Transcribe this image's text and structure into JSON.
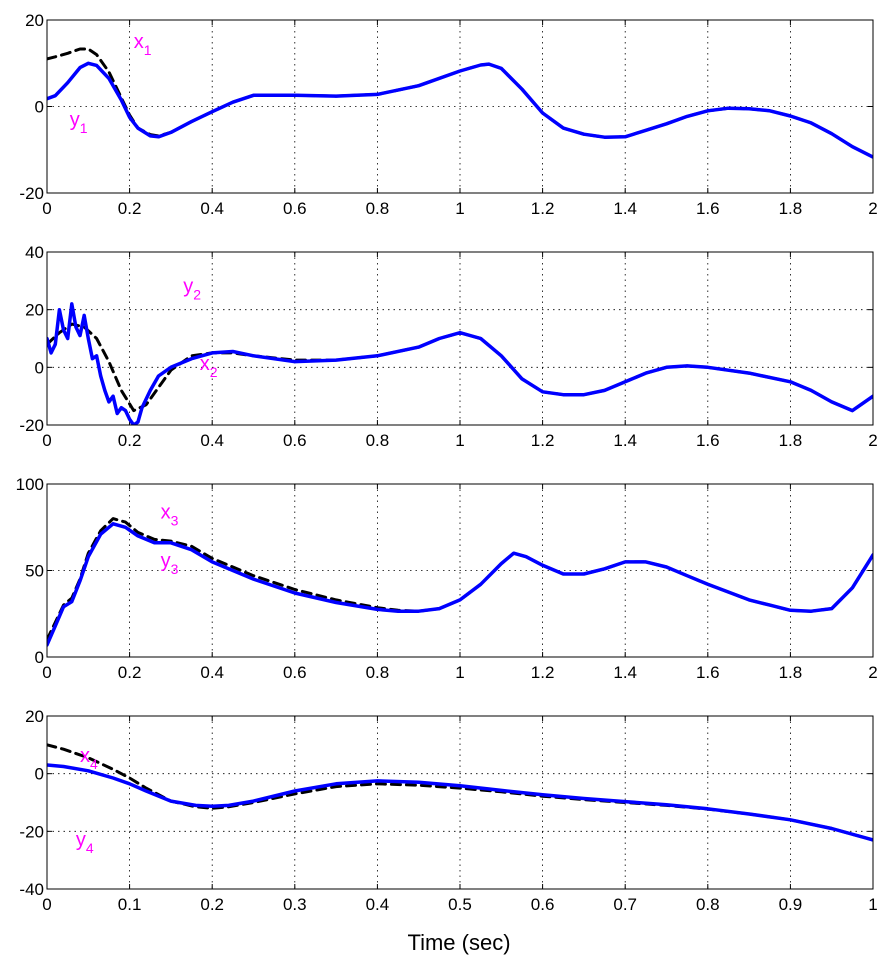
{
  "colors": {
    "x_series": "#000000",
    "y_series": "#0000ff",
    "annotation": "#ff00ff",
    "grid": "#000000"
  },
  "chart_data": [
    {
      "type": "line",
      "xlim": [
        0,
        2
      ],
      "ylim": [
        -20,
        20
      ],
      "xticks": [
        "0",
        "0.2",
        "0.4",
        "0.6",
        "0.8",
        "1",
        "1.2",
        "1.4",
        "1.6",
        "1.8",
        "2"
      ],
      "yticks": [
        "-20",
        "0",
        "20"
      ],
      "grid": true,
      "annotations": [
        {
          "label": "x",
          "sub": "1",
          "x": 0.21,
          "y": 13.5
        },
        {
          "label": "y",
          "sub": "1",
          "x": 0.055,
          "y": -4.5
        }
      ],
      "series": [
        {
          "name": "x1",
          "style": "dashed",
          "color": "#000000",
          "x": [
            0,
            0.02,
            0.05,
            0.08,
            0.1,
            0.12,
            0.15,
            0.18,
            0.2,
            0.22,
            0.25,
            0.27,
            0.3,
            0.35,
            0.4,
            0.45,
            0.5,
            0.6,
            0.7,
            0.8,
            0.9,
            1.0,
            1.05,
            1.07,
            1.1,
            1.15,
            1.2,
            1.25,
            1.3,
            1.35,
            1.4,
            1.45,
            1.5,
            1.55,
            1.6,
            1.65,
            1.7,
            1.75,
            1.8,
            1.85,
            1.9,
            1.95,
            2.0
          ],
          "y": [
            11,
            11.5,
            12.3,
            13.3,
            13.3,
            12,
            8,
            2,
            -2,
            -5,
            -6.5,
            -6.8,
            -6,
            -3.5,
            -1.2,
            1,
            2.6,
            2.6,
            2.4,
            2.8,
            4.8,
            8.2,
            9.6,
            9.8,
            8.8,
            4,
            -1.5,
            -5,
            -6.4,
            -7.1,
            -7,
            -5.5,
            -4,
            -2.3,
            -1,
            -0.4,
            -0.5,
            -1,
            -2.2,
            -3.8,
            -6.3,
            -9.3,
            -11.7
          ]
        },
        {
          "name": "y1",
          "style": "solid",
          "color": "#0000ff",
          "x": [
            0,
            0.02,
            0.05,
            0.08,
            0.1,
            0.12,
            0.15,
            0.18,
            0.2,
            0.22,
            0.25,
            0.27,
            0.3,
            0.35,
            0.4,
            0.45,
            0.5,
            0.6,
            0.7,
            0.8,
            0.9,
            1.0,
            1.05,
            1.07,
            1.1,
            1.15,
            1.2,
            1.25,
            1.3,
            1.35,
            1.4,
            1.45,
            1.5,
            1.55,
            1.6,
            1.65,
            1.7,
            1.75,
            1.8,
            1.85,
            1.9,
            1.95,
            2.0
          ],
          "y": [
            1.8,
            2.5,
            5.5,
            9,
            10,
            9.5,
            6.5,
            1.5,
            -2.5,
            -5,
            -6.8,
            -7,
            -6,
            -3.5,
            -1.2,
            1,
            2.6,
            2.6,
            2.4,
            2.8,
            4.8,
            8.2,
            9.6,
            9.8,
            8.8,
            4,
            -1.5,
            -5,
            -6.4,
            -7.1,
            -7,
            -5.5,
            -4,
            -2.3,
            -1,
            -0.4,
            -0.5,
            -1,
            -2.2,
            -3.8,
            -6.3,
            -9.3,
            -11.7
          ]
        }
      ]
    },
    {
      "type": "line",
      "xlim": [
        0,
        2
      ],
      "ylim": [
        -20,
        40
      ],
      "xticks": [
        "0",
        "0.2",
        "0.4",
        "0.6",
        "0.8",
        "1",
        "1.2",
        "1.4",
        "1.6",
        "1.8",
        "2"
      ],
      "yticks": [
        "-20",
        "0",
        "20",
        "40"
      ],
      "grid": true,
      "annotations": [
        {
          "label": "y",
          "sub": "2",
          "x": 0.33,
          "y": 26
        },
        {
          "label": "x",
          "sub": "2",
          "x": 0.37,
          "y": -1
        }
      ],
      "series": [
        {
          "name": "x2",
          "style": "dashed",
          "color": "#000000",
          "x": [
            0,
            0.03,
            0.06,
            0.09,
            0.12,
            0.15,
            0.18,
            0.21,
            0.24,
            0.27,
            0.3,
            0.35,
            0.4,
            0.45,
            0.5,
            0.6,
            0.7,
            0.8,
            0.9,
            0.95,
            1.0,
            1.05,
            1.1,
            1.15,
            1.2,
            1.25,
            1.3,
            1.35,
            1.4,
            1.45,
            1.5,
            1.55,
            1.6,
            1.7,
            1.8,
            1.85,
            1.9,
            1.95,
            2.0
          ],
          "y": [
            8,
            12,
            15,
            14,
            10,
            2,
            -8,
            -15,
            -13,
            -7,
            -1,
            4,
            5,
            5,
            4,
            2.5,
            2.5,
            4,
            7,
            10,
            12,
            10,
            4,
            -4,
            -8.5,
            -9.5,
            -9.5,
            -8,
            -5,
            -2,
            0,
            0.5,
            0,
            -2,
            -5,
            -8,
            -12,
            -15,
            -10
          ]
        },
        {
          "name": "y2",
          "style": "solid",
          "color": "#0000ff",
          "x": [
            0,
            0.01,
            0.02,
            0.03,
            0.04,
            0.05,
            0.06,
            0.07,
            0.08,
            0.09,
            0.1,
            0.11,
            0.12,
            0.13,
            0.14,
            0.15,
            0.16,
            0.17,
            0.18,
            0.19,
            0.2,
            0.21,
            0.22,
            0.23,
            0.25,
            0.27,
            0.3,
            0.35,
            0.4,
            0.45,
            0.5,
            0.6,
            0.7,
            0.8,
            0.9,
            0.95,
            1.0,
            1.05,
            1.1,
            1.15,
            1.2,
            1.25,
            1.3,
            1.35,
            1.4,
            1.45,
            1.5,
            1.55,
            1.6,
            1.7,
            1.8,
            1.85,
            1.9,
            1.95,
            2.0
          ],
          "y": [
            10,
            5,
            8,
            20,
            13,
            10,
            22,
            14,
            11,
            18,
            10,
            3,
            4,
            -3,
            -8,
            -12,
            -10,
            -16,
            -14,
            -15,
            -18,
            -20,
            -19,
            -14,
            -8,
            -3,
            0,
            3,
            5,
            5.5,
            4,
            2,
            2.5,
            4,
            7,
            10,
            12,
            10,
            4,
            -4,
            -8.5,
            -9.5,
            -9.5,
            -8,
            -5,
            -2,
            0,
            0.5,
            0,
            -2,
            -5,
            -8,
            -12,
            -15,
            -10
          ]
        }
      ]
    },
    {
      "type": "line",
      "xlim": [
        0,
        2
      ],
      "ylim": [
        0,
        100
      ],
      "xticks": [
        "0",
        "0.2",
        "0.4",
        "0.6",
        "0.8",
        "1",
        "1.2",
        "1.4",
        "1.6",
        "1.8",
        "2"
      ],
      "yticks": [
        "0",
        "50",
        "100"
      ],
      "grid": true,
      "annotations": [
        {
          "label": "x",
          "sub": "3",
          "x": 0.275,
          "y": 80
        },
        {
          "label": "y",
          "sub": "3",
          "x": 0.275,
          "y": 52
        }
      ],
      "series": [
        {
          "name": "x3",
          "style": "dashed",
          "color": "#000000",
          "x": [
            0,
            0.02,
            0.04,
            0.06,
            0.08,
            0.1,
            0.13,
            0.16,
            0.19,
            0.22,
            0.26,
            0.3,
            0.35,
            0.4,
            0.5,
            0.6,
            0.7,
            0.8,
            0.85,
            0.9,
            0.95,
            1.0,
            1.05,
            1.1,
            1.13,
            1.16,
            1.2,
            1.25,
            1.3,
            1.35,
            1.4,
            1.45,
            1.5,
            1.55,
            1.6,
            1.7,
            1.75,
            1.8,
            1.85,
            1.9,
            1.95,
            2.0
          ],
          "y": [
            10,
            20,
            30,
            34,
            45,
            60,
            73,
            80,
            78,
            72,
            68,
            67,
            64,
            57,
            47,
            39,
            33,
            28.5,
            27,
            26.5,
            28,
            33,
            42,
            54,
            60,
            58,
            53,
            48,
            48,
            51,
            55,
            55,
            52,
            47,
            42,
            33,
            30,
            27,
            26.5,
            28,
            40,
            59
          ]
        },
        {
          "name": "y3",
          "style": "solid",
          "color": "#0000ff",
          "x": [
            0,
            0.02,
            0.04,
            0.06,
            0.08,
            0.1,
            0.13,
            0.16,
            0.19,
            0.22,
            0.26,
            0.3,
            0.35,
            0.4,
            0.5,
            0.6,
            0.7,
            0.8,
            0.85,
            0.9,
            0.95,
            1.0,
            1.05,
            1.1,
            1.13,
            1.16,
            1.2,
            1.25,
            1.3,
            1.35,
            1.4,
            1.45,
            1.5,
            1.55,
            1.6,
            1.7,
            1.75,
            1.8,
            1.85,
            1.9,
            1.95,
            2.0
          ],
          "y": [
            7,
            18,
            29,
            32,
            44,
            58,
            71,
            77,
            75,
            70,
            66,
            66,
            62,
            55,
            45,
            37,
            31.5,
            27.5,
            26.5,
            26.5,
            28,
            33,
            42,
            54,
            60,
            58,
            53,
            48,
            48,
            51,
            55,
            55,
            52,
            47,
            42,
            33,
            30,
            27,
            26.5,
            28,
            40,
            59
          ]
        }
      ]
    },
    {
      "type": "line",
      "xlim": [
        0,
        1
      ],
      "ylim": [
        -40,
        20
      ],
      "xticks": [
        "0",
        "0.1",
        "0.2",
        "0.3",
        "0.4",
        "0.5",
        "0.6",
        "0.7",
        "0.8",
        "0.9",
        "1"
      ],
      "yticks": [
        "-40",
        "-20",
        "0",
        "20"
      ],
      "grid": true,
      "xlabel": "Time (sec)",
      "annotations": [
        {
          "label": "x",
          "sub": "4",
          "x": 0.04,
          "y": 4
        },
        {
          "label": "y",
          "sub": "4",
          "x": 0.035,
          "y": -25
        }
      ],
      "series": [
        {
          "name": "x4",
          "style": "dashed",
          "color": "#000000",
          "x": [
            0,
            0.02,
            0.05,
            0.08,
            0.1,
            0.12,
            0.15,
            0.18,
            0.2,
            0.22,
            0.25,
            0.3,
            0.35,
            0.4,
            0.45,
            0.5,
            0.55,
            0.6,
            0.65,
            0.7,
            0.75,
            0.8,
            0.85,
            0.9,
            0.95,
            1.0
          ],
          "y": [
            10,
            8.5,
            5.5,
            1.5,
            -1.5,
            -5,
            -9.5,
            -11.5,
            -12,
            -11.5,
            -10,
            -7,
            -4.5,
            -3.5,
            -4,
            -5,
            -6.3,
            -7.8,
            -9,
            -10,
            -11,
            -12.3,
            -14,
            -16,
            -19,
            -23
          ]
        },
        {
          "name": "y4",
          "style": "solid",
          "color": "#0000ff",
          "x": [
            0,
            0.02,
            0.05,
            0.08,
            0.1,
            0.12,
            0.15,
            0.18,
            0.2,
            0.22,
            0.25,
            0.3,
            0.35,
            0.4,
            0.45,
            0.5,
            0.55,
            0.6,
            0.65,
            0.7,
            0.75,
            0.8,
            0.85,
            0.9,
            0.95,
            1.0
          ],
          "y": [
            3,
            2.5,
            1,
            -1.5,
            -3.5,
            -6,
            -9.5,
            -11,
            -11.3,
            -11,
            -9.5,
            -6,
            -3.5,
            -2.5,
            -3,
            -4.2,
            -5.8,
            -7.3,
            -8.6,
            -9.7,
            -10.8,
            -12.2,
            -14,
            -16,
            -19,
            -23
          ]
        }
      ]
    }
  ]
}
